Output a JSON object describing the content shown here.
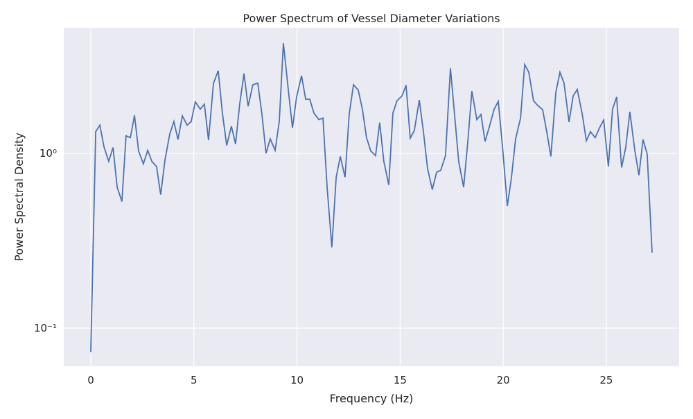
{
  "chart_data": {
    "type": "line",
    "title": "Power Spectrum of Vessel Diameter Variations",
    "x_label": "Frequency (Hz)",
    "y_label": "Power Spectral Density",
    "x": [
      0,
      0.24,
      0.44,
      0.64,
      0.87,
      1.08,
      1.28,
      1.51,
      1.71,
      1.92,
      2.12,
      2.32,
      2.55,
      2.76,
      2.96,
      3.19,
      3.39,
      3.6,
      3.83,
      4.03,
      4.23,
      4.44,
      4.67,
      4.87,
      5.07,
      5.31,
      5.51,
      5.71,
      5.95,
      6.18,
      6.38,
      6.59,
      6.82,
      7.02,
      7.22,
      7.43,
      7.63,
      7.86,
      8.1,
      8.3,
      8.5,
      8.7,
      8.94,
      9.14,
      9.34,
      9.58,
      9.78,
      9.98,
      10.22,
      10.42,
      10.62,
      10.82,
      11.06,
      11.26,
      11.46,
      11.69,
      11.9,
      12.1,
      12.33,
      12.53,
      12.74,
      12.97,
      13.17,
      13.37,
      13.58,
      13.81,
      14.01,
      14.21,
      14.45,
      14.65,
      14.85,
      15.09,
      15.29,
      15.49,
      15.69,
      15.93,
      16.13,
      16.33,
      16.56,
      16.77,
      16.97,
      17.2,
      17.44,
      17.64,
      17.84,
      18.08,
      18.28,
      18.48,
      18.72,
      18.92,
      19.12,
      19.32,
      19.56,
      19.76,
      19.96,
      20.2,
      20.4,
      20.6,
      20.84,
      21.04,
      21.24,
      21.47,
      21.67,
      21.91,
      22.11,
      22.31,
      22.55,
      22.75,
      22.95,
      23.19,
      23.39,
      23.59,
      23.83,
      24.03,
      24.23,
      24.46,
      24.67,
      24.87,
      25.1,
      25.3,
      25.5,
      25.74,
      25.94,
      26.14,
      26.38,
      26.58,
      26.78,
      26.98,
      27.22
    ],
    "series": [
      {
        "name": "PSD",
        "color": "#4c72b0",
        "values": [
          0.073,
          1.33,
          1.45,
          1.09,
          0.9,
          1.08,
          0.64,
          0.53,
          1.26,
          1.23,
          1.65,
          1.03,
          0.87,
          1.04,
          0.9,
          0.84,
          0.58,
          0.92,
          1.29,
          1.52,
          1.2,
          1.64,
          1.45,
          1.52,
          1.97,
          1.79,
          1.91,
          1.19,
          2.52,
          2.97,
          1.71,
          1.11,
          1.43,
          1.13,
          1.91,
          2.86,
          1.86,
          2.47,
          2.52,
          1.67,
          1.0,
          1.21,
          1.04,
          1.52,
          4.27,
          2.3,
          1.4,
          2.1,
          2.78,
          2.04,
          2.04,
          1.7,
          1.56,
          1.59,
          0.64,
          0.29,
          0.73,
          0.96,
          0.73,
          1.67,
          2.47,
          2.3,
          1.79,
          1.23,
          1.03,
          0.97,
          1.5,
          0.9,
          0.66,
          1.7,
          2.0,
          2.13,
          2.45,
          1.22,
          1.35,
          2.02,
          1.33,
          0.82,
          0.62,
          0.78,
          0.8,
          0.97,
          3.07,
          1.67,
          0.9,
          0.64,
          1.16,
          2.27,
          1.56,
          1.67,
          1.17,
          1.41,
          1.79,
          1.98,
          1.11,
          0.5,
          0.73,
          1.21,
          1.59,
          3.22,
          2.91,
          2.0,
          1.88,
          1.78,
          1.33,
          0.96,
          2.23,
          2.91,
          2.52,
          1.51,
          2.13,
          2.32,
          1.68,
          1.18,
          1.33,
          1.23,
          1.4,
          1.55,
          0.84,
          1.79,
          2.1,
          0.83,
          1.08,
          1.73,
          1.04,
          0.75,
          1.2,
          0.99,
          0.27
        ]
      }
    ],
    "xlim": [
      -1.31,
      28.53
    ],
    "xticks": [
      0,
      5,
      10,
      15,
      20,
      25
    ],
    "ylim": [
      0.0605,
      5.23
    ],
    "yticks": [
      {
        "value": 0.1,
        "label": "10⁻¹"
      },
      {
        "value": 1,
        "label": "10⁰"
      }
    ],
    "y_log": true,
    "grid": true
  }
}
